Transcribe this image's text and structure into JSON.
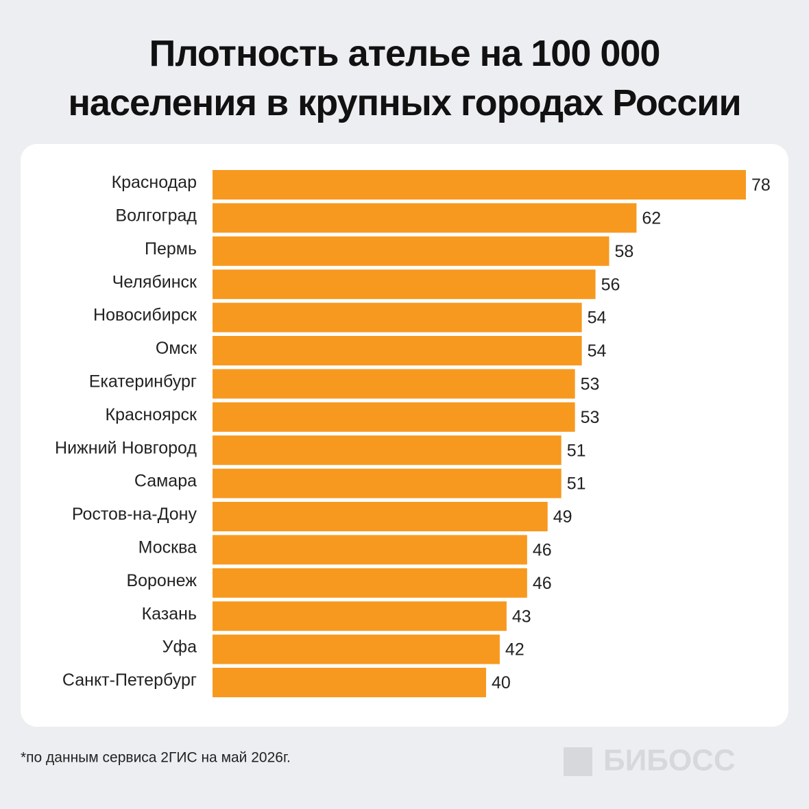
{
  "chart_data": {
    "type": "barh",
    "title": "Плотность ателье на 100 000 населения в крупных городах России",
    "categories": [
      "Краснодар",
      "Волгоград",
      "Пермь",
      "Челябинск",
      "Новосибирск",
      "Омск",
      "Екатеринбург",
      "Красноярск",
      "Нижний Новгород",
      "Самара",
      "Ростов-на-Дону",
      "Москва",
      "Воронеж",
      "Казань",
      "Уфа",
      "Санкт-Петербург"
    ],
    "values": [
      78,
      62,
      58,
      56,
      54,
      54,
      53,
      53,
      51,
      51,
      49,
      46,
      46,
      43,
      42,
      40
    ],
    "color": "#f7991f",
    "footnote": "*по данным сервиса 2ГИС на май 2026г.",
    "logo": "БИБОСС"
  }
}
